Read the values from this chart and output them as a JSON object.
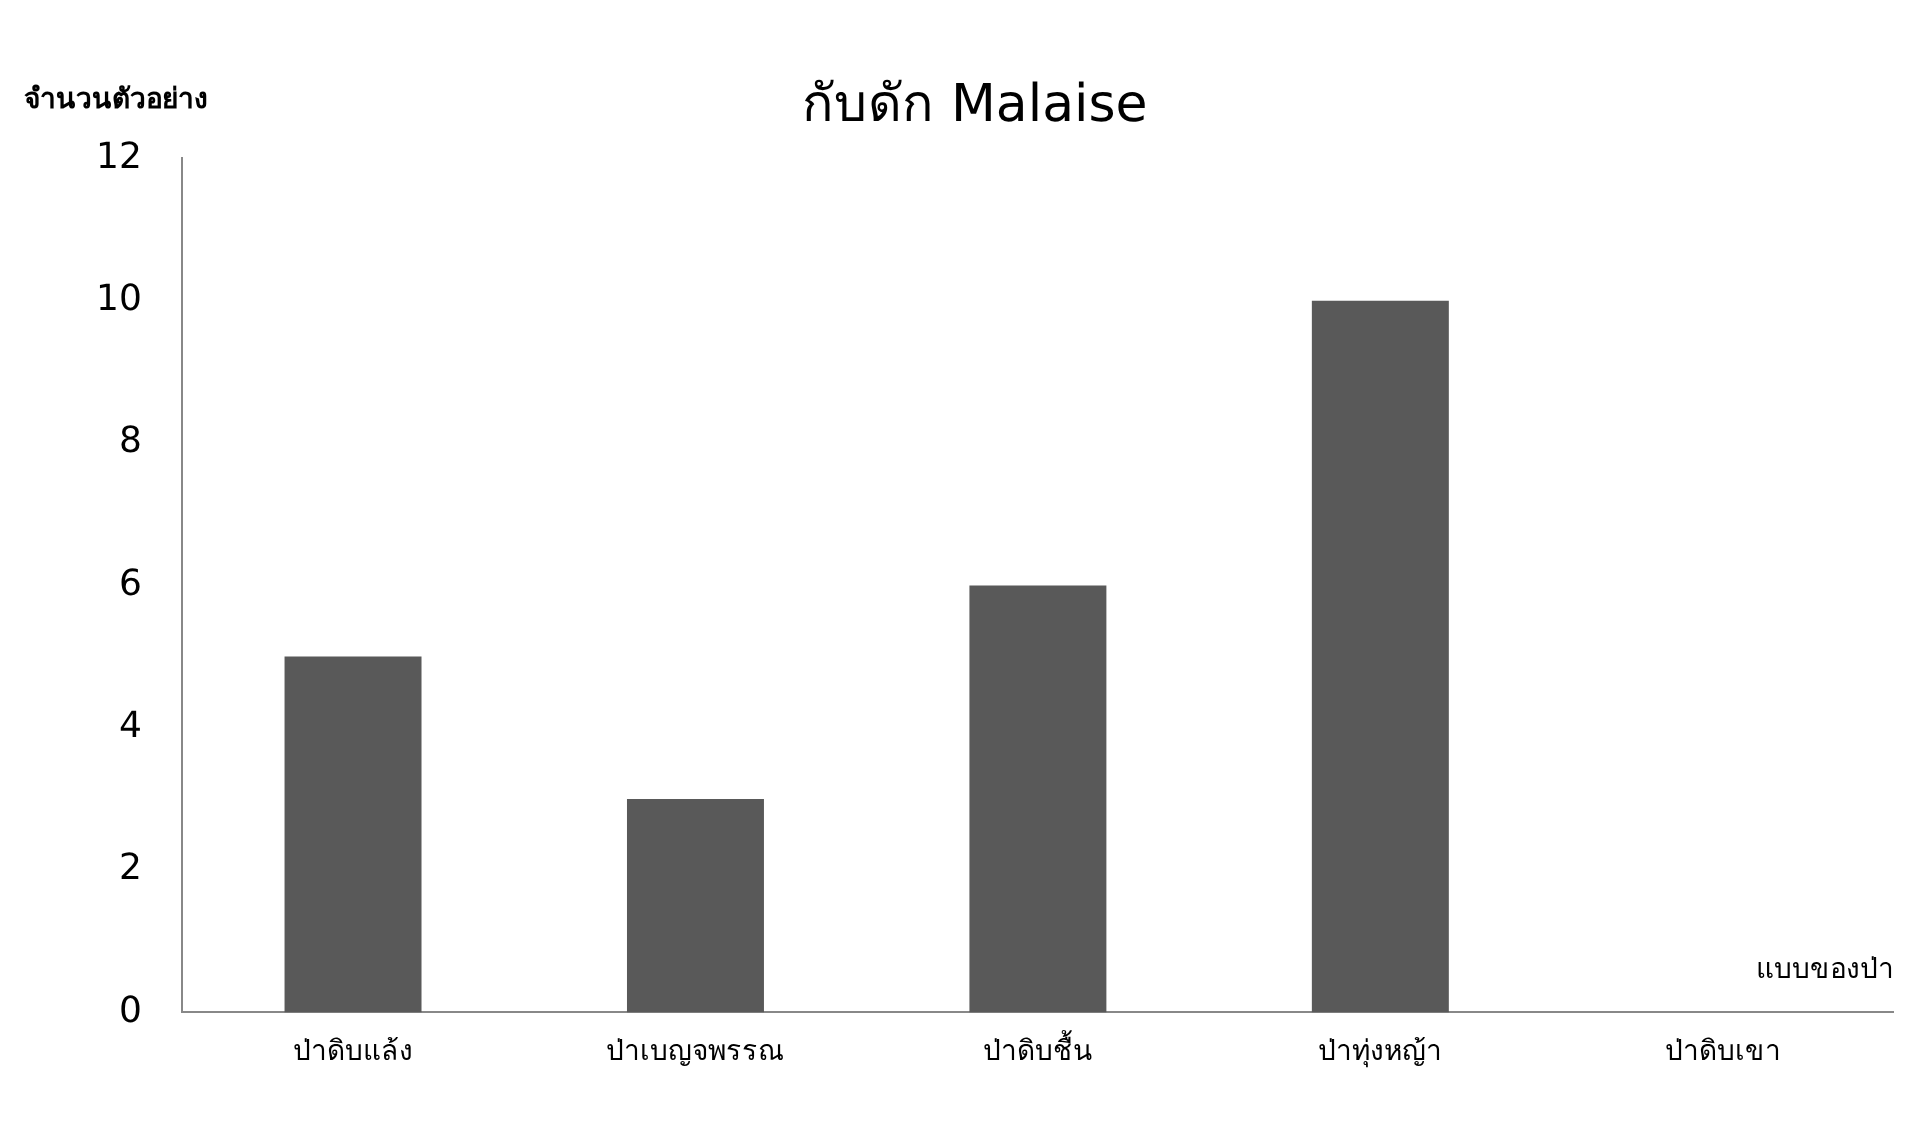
{
  "chart_data": {
    "type": "bar",
    "title": "กับดัก Malaise",
    "xlabel": "แบบของป่า",
    "ylabel": "จำนวนตัวอย่าง",
    "categories": [
      "ป่าดิบแล้ง",
      "ป่าเบญจพรรณ",
      "ป่าดิบชื้น",
      "ป่าทุ่งหญ้า",
      "ป่าดิบเขา"
    ],
    "values": [
      5,
      3,
      6,
      10,
      0
    ],
    "color": "#595959",
    "ylim": [
      0,
      12
    ],
    "yticks": [
      0,
      2,
      4,
      6,
      8,
      10,
      12
    ],
    "grid": false,
    "legend": false
  }
}
